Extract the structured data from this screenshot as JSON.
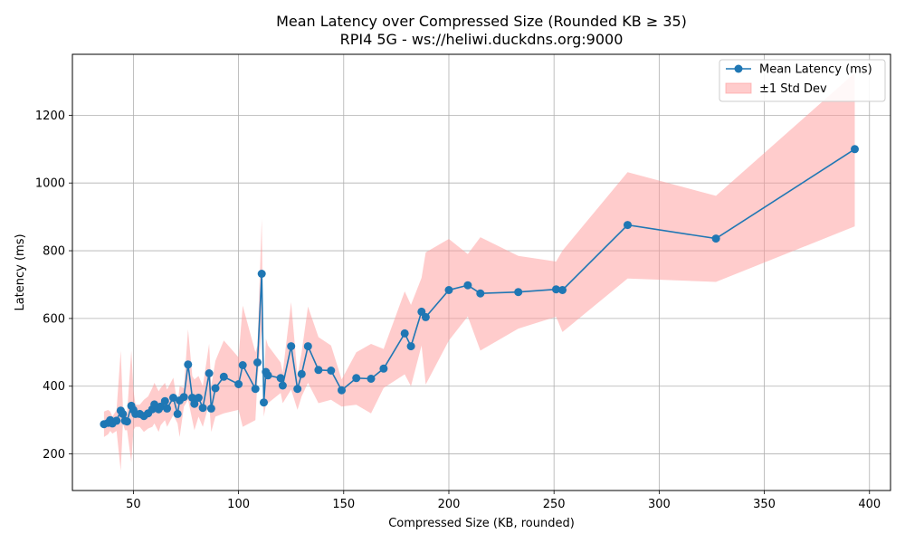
{
  "chart_data": {
    "type": "line",
    "title": "Mean Latency over Compressed Size (Rounded KB ≥ 35)",
    "subtitle": "RPI4 5G - ws://heliwi.duckdns.org:9000",
    "xlabel": "Compressed Size (KB, rounded)",
    "ylabel": "Latency (ms)",
    "xlim": [
      21,
      410
    ],
    "ylim": [
      92,
      1380
    ],
    "xticks": [
      50,
      100,
      150,
      200,
      250,
      300,
      350,
      400
    ],
    "yticks": [
      200,
      400,
      600,
      800,
      1000,
      1200
    ],
    "grid": true,
    "legend_position": "top-right",
    "colors": {
      "line": "#1f77b4",
      "band": "#ff9999"
    },
    "series": [
      {
        "name": "Mean Latency (ms)",
        "x": [
          36,
          38,
          39,
          40,
          42,
          44,
          45,
          46,
          47,
          49,
          50,
          51,
          53,
          55,
          57,
          59,
          60,
          62,
          63,
          65,
          66,
          69,
          71,
          72,
          74,
          76,
          78,
          79,
          81,
          83,
          86,
          87,
          89,
          93,
          100,
          102,
          108,
          109,
          111,
          112,
          113,
          114,
          120,
          121,
          125,
          128,
          130,
          133,
          138,
          144,
          149,
          156,
          163,
          169,
          179,
          182,
          187,
          189,
          200,
          209,
          215,
          233,
          251,
          254,
          285,
          327,
          393
        ],
        "y": [
          288,
          292,
          300,
          290,
          298,
          328,
          318,
          298,
          296,
          342,
          330,
          318,
          318,
          312,
          320,
          332,
          346,
          332,
          340,
          356,
          334,
          366,
          318,
          358,
          368,
          464,
          366,
          348,
          366,
          336,
          438,
          334,
          394,
          428,
          406,
          462,
          392,
          470,
          732,
          352,
          442,
          432,
          424,
          402,
          518,
          392,
          436,
          518,
          448,
          446,
          388,
          424,
          422,
          452,
          556,
          518,
          620,
          604,
          684,
          698,
          674,
          678,
          686,
          684,
          876,
          836,
          1100
        ]
      },
      {
        "name": "±1 Std Dev",
        "x": [
          36,
          38,
          39,
          40,
          42,
          44,
          45,
          46,
          47,
          49,
          50,
          51,
          53,
          55,
          57,
          59,
          60,
          62,
          63,
          65,
          66,
          69,
          71,
          72,
          74,
          76,
          78,
          79,
          81,
          83,
          86,
          87,
          89,
          93,
          100,
          102,
          108,
          109,
          111,
          112,
          113,
          114,
          120,
          121,
          125,
          128,
          130,
          133,
          138,
          144,
          149,
          156,
          163,
          169,
          179,
          182,
          187,
          189,
          200,
          209,
          215,
          233,
          251,
          254,
          285,
          327,
          393
        ],
        "upper": [
          325,
          330,
          325,
          310,
          330,
          505,
          340,
          330,
          320,
          505,
          390,
          345,
          345,
          360,
          370,
          395,
          410,
          385,
          395,
          410,
          390,
          425,
          345,
          400,
          395,
          568,
          430,
          420,
          430,
          400,
          525,
          400,
          475,
          535,
          485,
          638,
          500,
          520,
          895,
          398,
          540,
          520,
          470,
          440,
          648,
          430,
          500,
          635,
          545,
          520,
          420,
          500,
          525,
          510,
          680,
          640,
          720,
          795,
          835,
          790,
          840,
          785,
          768,
          800,
          1032,
          962,
          1325
        ],
        "lower": [
          250,
          258,
          268,
          260,
          268,
          150,
          290,
          270,
          270,
          175,
          270,
          280,
          280,
          265,
          275,
          280,
          290,
          265,
          285,
          300,
          280,
          315,
          290,
          250,
          340,
          360,
          300,
          270,
          310,
          280,
          350,
          265,
          310,
          320,
          330,
          280,
          300,
          420,
          570,
          310,
          345,
          350,
          380,
          350,
          390,
          330,
          370,
          410,
          350,
          360,
          340,
          345,
          320,
          395,
          435,
          400,
          520,
          405,
          535,
          606,
          505,
          570,
          605,
          560,
          718,
          708,
          872
        ]
      }
    ]
  }
}
